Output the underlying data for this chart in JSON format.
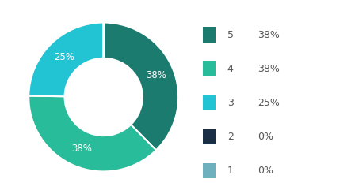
{
  "labels": [
    "5",
    "4",
    "3",
    "2",
    "1"
  ],
  "values": [
    38,
    38,
    25,
    0.0001,
    0.0001
  ],
  "colors": [
    "#1b7b6e",
    "#29bc9b",
    "#22c4d4",
    "#1a2e45",
    "#6eb0be"
  ],
  "wedge_labels": [
    "38%",
    "38%",
    "25%",
    "",
    ""
  ],
  "legend_entries": [
    {
      "num": "5",
      "pct": "38%"
    },
    {
      "num": "4",
      "pct": "38%"
    },
    {
      "num": "3",
      "pct": "25%"
    },
    {
      "num": "2",
      "pct": "0%"
    },
    {
      "num": "1",
      "pct": "0%"
    }
  ],
  "background_color": "#ffffff",
  "figsize": [
    4.43,
    2.46
  ],
  "dpi": 100
}
